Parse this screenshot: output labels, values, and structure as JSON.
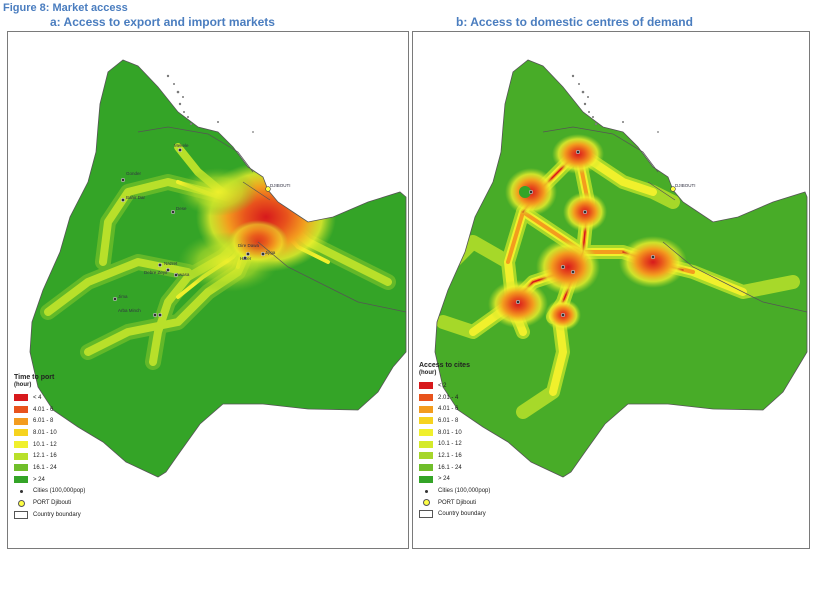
{
  "figure": {
    "label": "Figure 8:",
    "title": "Market access"
  },
  "panels": [
    {
      "title": "a: Access to export and import markets",
      "legend": {
        "title": "Time to port",
        "unit": "(hour)",
        "classes": [
          {
            "label": "< 4",
            "color": "#d7191c"
          },
          {
            "label": "4.01 - 6",
            "color": "#e8531c"
          },
          {
            "label": "6.01 - 8",
            "color": "#f39c1e"
          },
          {
            "label": "8.01 - 10",
            "color": "#f6d31f"
          },
          {
            "label": "10.1 - 12",
            "color": "#f0f02c"
          },
          {
            "label": "12.1 - 16",
            "color": "#b8e02a"
          },
          {
            "label": "16.1 - 24",
            "color": "#6fbe2a"
          },
          {
            "label": "> 24",
            "color": "#34a427"
          }
        ],
        "symbols": [
          {
            "label": "Cities (100,000pop)",
            "icon": "city-dot"
          },
          {
            "label": "PORT Djibouti",
            "icon": "port-circle"
          },
          {
            "label": "Country boundary",
            "icon": "boundary-box"
          }
        ]
      },
      "map_labels": [
        "DJIBOUTI",
        "Mekele",
        "Gonder",
        "Bahir Dar",
        "Dese",
        "Dire Dawa",
        "Harer",
        "Jijiga",
        "Nazret",
        "Awasa",
        "Debre Zeyit",
        "Jima",
        "Arba Minch"
      ]
    },
    {
      "title": "b: Access to domestic centres of demand",
      "legend": {
        "title": "Access to cites",
        "unit": "(hour)",
        "classes": [
          {
            "label": "< 2",
            "color": "#d7191c"
          },
          {
            "label": "2.01 - 4",
            "color": "#e8531c"
          },
          {
            "label": "4.01 - 6",
            "color": "#f39c1e"
          },
          {
            "label": "6.01 - 8",
            "color": "#f6d31f"
          },
          {
            "label": "8.01 - 10",
            "color": "#f0f02c"
          },
          {
            "label": "10.1 - 12",
            "color": "#d4ea2a"
          },
          {
            "label": "12.1 - 16",
            "color": "#a6d62a"
          },
          {
            "label": "16.1 - 24",
            "color": "#6fbe2a"
          },
          {
            "label": "> 24",
            "color": "#34a427"
          }
        ],
        "symbols": [
          {
            "label": "Cities (100,000pop)",
            "icon": "city-dot"
          },
          {
            "label": "PORT Djibouti",
            "icon": "port-circle"
          },
          {
            "label": "Country boundary",
            "icon": "boundary-box"
          }
        ]
      },
      "map_labels": [
        "DJIBOUTI"
      ]
    }
  ]
}
